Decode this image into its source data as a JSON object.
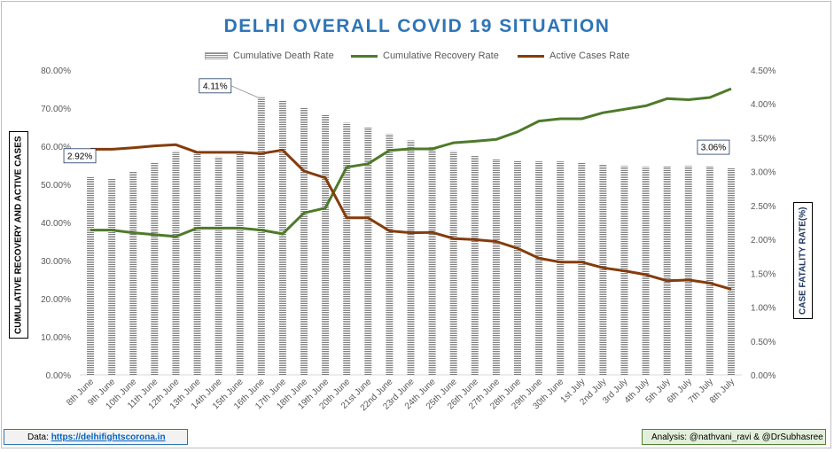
{
  "chart_data": {
    "type": "bar",
    "title": "DELHI OVERALL COVID 19 SITUATION",
    "left_axis_label": "CUMULATIVE RECOVERY AND ACTIVE CASES",
    "right_axis_label": "CASE FATALITY RATE(%)",
    "left_ticks": [
      "0.00%",
      "10.00%",
      "20.00%",
      "30.00%",
      "40.00%",
      "50.00%",
      "60.00%",
      "70.00%",
      "80.00%"
    ],
    "right_ticks": [
      "0.00%",
      "0.50%",
      "1.00%",
      "1.50%",
      "2.00%",
      "2.50%",
      "3.00%",
      "3.50%",
      "4.00%",
      "4.50%"
    ],
    "left_ylim": [
      0,
      80
    ],
    "right_ylim": [
      0,
      4.5
    ],
    "legend_position": "top",
    "categories": [
      "8th June",
      "9th June",
      "10th June",
      "11th June",
      "12th June",
      "13th June",
      "14th June",
      "15th June",
      "16th June",
      "17th June",
      "18th June",
      "19th June",
      "20th June",
      "21st June",
      "22nd June",
      "23rd June",
      "24th June",
      "25th June",
      "26th June",
      "27th June",
      "28th June",
      "29th June",
      "30th June",
      "1st July",
      "2nd July",
      "3rd July",
      "4th July",
      "5th July",
      "6th July",
      "7th July",
      "8th July"
    ],
    "series": [
      {
        "name": "Cumulative Death Rate",
        "kind": "bar",
        "axis": "right",
        "color": "#8c8c8c",
        "values": [
          2.92,
          2.9,
          3.0,
          3.13,
          3.3,
          3.28,
          3.22,
          3.26,
          4.11,
          4.05,
          3.95,
          3.84,
          3.72,
          3.65,
          3.56,
          3.46,
          3.36,
          3.3,
          3.23,
          3.19,
          3.16,
          3.15,
          3.15,
          3.13,
          3.11,
          3.09,
          3.07,
          3.08,
          3.09,
          3.08,
          3.06
        ]
      },
      {
        "name": "Cumulative Recovery Rate",
        "kind": "line",
        "axis": "left",
        "color": "#4e7a2a",
        "values": [
          38.0,
          38.0,
          37.3,
          36.8,
          36.3,
          38.5,
          38.5,
          38.5,
          38.0,
          37.0,
          42.5,
          43.8,
          54.5,
          55.4,
          58.9,
          59.3,
          59.3,
          60.9,
          61.3,
          61.8,
          63.8,
          66.6,
          67.2,
          67.2,
          68.8,
          69.7,
          70.6,
          72.5,
          72.2,
          72.8,
          75.1
        ]
      },
      {
        "name": "Active Cases Rate",
        "kind": "line",
        "axis": "left",
        "color": "#843c0c",
        "values": [
          59.2,
          59.2,
          59.6,
          60.1,
          60.4,
          58.4,
          58.4,
          58.4,
          58.1,
          59.0,
          53.5,
          51.7,
          41.2,
          41.2,
          37.8,
          37.3,
          37.4,
          35.8,
          35.5,
          35.0,
          33.2,
          30.6,
          29.6,
          29.6,
          28.1,
          27.3,
          26.3,
          24.7,
          24.9,
          24.1,
          22.5
        ]
      }
    ],
    "annotations": [
      {
        "text": "2.92%",
        "index": 0
      },
      {
        "text": "4.11%",
        "index": 8
      },
      {
        "text": "3.06%",
        "index": 30
      }
    ]
  },
  "footer": {
    "data_label": "Data: ",
    "data_link": "https://delhifightscorona.in",
    "analysis": "Analysis: @nathvani_ravi & @DrSubhasree"
  }
}
